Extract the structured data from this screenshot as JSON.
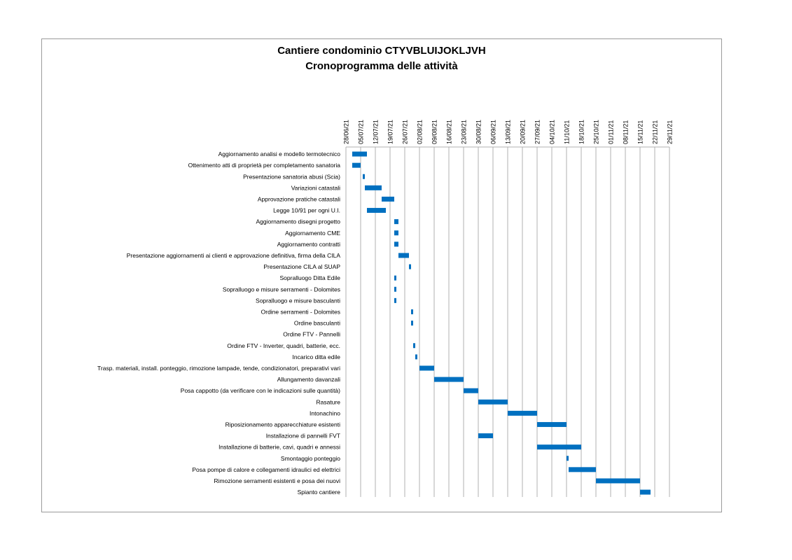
{
  "title_line1": "Cantiere condominio CTYVBLUIJOKLJVH",
  "title_line2": "Cronoprogramma delle attività",
  "colors": {
    "bar": "#0070c0",
    "grid": "#b0b0b0",
    "frame": "#9a9a9a"
  },
  "chart_data": {
    "type": "gantt",
    "title": "Cantiere condominio CTYVBLUIJOKLJVH — Cronoprogramma delle attività",
    "x_axis": {
      "type": "date",
      "position": "top",
      "range": [
        "2021-06-28",
        "2021-12-01"
      ],
      "tick_labels": [
        "28/06/21",
        "05/07/21",
        "12/07/21",
        "19/07/21",
        "26/07/21",
        "02/08/21",
        "09/08/21",
        "16/08/21",
        "23/08/21",
        "30/08/21",
        "06/09/21",
        "13/09/21",
        "20/09/21",
        "27/09/21",
        "04/10/21",
        "11/10/21",
        "18/10/21",
        "25/10/21",
        "01/11/21",
        "08/11/21",
        "15/11/21",
        "22/11/21",
        "29/11/21"
      ],
      "tick_dates": [
        "2021-06-28",
        "2021-07-05",
        "2021-07-12",
        "2021-07-19",
        "2021-07-26",
        "2021-08-02",
        "2021-08-09",
        "2021-08-16",
        "2021-08-23",
        "2021-08-30",
        "2021-09-06",
        "2021-09-13",
        "2021-09-20",
        "2021-09-27",
        "2021-10-04",
        "2021-10-11",
        "2021-10-18",
        "2021-10-25",
        "2021-11-01",
        "2021-11-08",
        "2021-11-15",
        "2021-11-22",
        "2021-11-29"
      ]
    },
    "grid": true,
    "tasks": [
      {
        "name": "Aggiornamento analisi e modello termotecnico",
        "start": "2021-07-01",
        "end": "2021-07-08"
      },
      {
        "name": "Ottenimento atti di proprietà per completamento sanatoria",
        "start": "2021-07-01",
        "end": "2021-07-05"
      },
      {
        "name": "Presentazione sanatoria abusi (Scia)",
        "start": "2021-07-06",
        "end": "2021-07-07"
      },
      {
        "name": "Variazioni catastali",
        "start": "2021-07-07",
        "end": "2021-07-15"
      },
      {
        "name": "Approvazione pratiche catastali",
        "start": "2021-07-15",
        "end": "2021-07-21"
      },
      {
        "name": "Legge 10/91 per ogni U.I.",
        "start": "2021-07-08",
        "end": "2021-07-17"
      },
      {
        "name": "Aggiornamento disegni progetto",
        "start": "2021-07-21",
        "end": "2021-07-23"
      },
      {
        "name": "Aggiornamento CME",
        "start": "2021-07-21",
        "end": "2021-07-23"
      },
      {
        "name": "Aggiornamento contratti",
        "start": "2021-07-21",
        "end": "2021-07-23"
      },
      {
        "name": "Presentazione aggiornamenti ai clienti e approvazione definitiva, firma della CILA",
        "start": "2021-07-23",
        "end": "2021-07-28"
      },
      {
        "name": "Presentazione CILA al SUAP",
        "start": "2021-07-28",
        "end": "2021-07-29"
      },
      {
        "name": "Sopralluogo Ditta Edile",
        "start": "2021-07-21",
        "end": "2021-07-22"
      },
      {
        "name": "Sopralluogo e misure serramenti - Dolomites",
        "start": "2021-07-21",
        "end": "2021-07-22"
      },
      {
        "name": "Sopralluogo e misure basculanti",
        "start": "2021-07-21",
        "end": "2021-07-22"
      },
      {
        "name": "Ordine serramenti - Dolomites",
        "start": "2021-07-29",
        "end": "2021-07-30"
      },
      {
        "name": "Ordine basculanti",
        "start": "2021-07-29",
        "end": "2021-07-30"
      },
      {
        "name": "Ordine FTV - Pannelli",
        "start": null,
        "end": null
      },
      {
        "name": "Ordine FTV - Inverter, quadri, batterie, ecc.",
        "start": "2021-07-30",
        "end": "2021-07-31"
      },
      {
        "name": "Incarico ditta edile",
        "start": "2021-07-31",
        "end": "2021-08-01"
      },
      {
        "name": "Trasp. materiali, install. ponteggio, rimozione lampade, tende, condizionatori, preparativi vari",
        "start": "2021-08-02",
        "end": "2021-08-09"
      },
      {
        "name": "Allungamento davanzali",
        "start": "2021-08-09",
        "end": "2021-08-23"
      },
      {
        "name": "Posa cappotto (da verificare con le indicazioni sulle quantità)",
        "start": "2021-08-23",
        "end": "2021-08-30"
      },
      {
        "name": "Rasature",
        "start": "2021-08-30",
        "end": "2021-09-13"
      },
      {
        "name": "Intonachino",
        "start": "2021-09-13",
        "end": "2021-09-27"
      },
      {
        "name": "Riposizionamento apparecchiature esistenti",
        "start": "2021-09-27",
        "end": "2021-10-11"
      },
      {
        "name": "Installazione di pannelli FVT",
        "start": "2021-08-30",
        "end": "2021-09-06"
      },
      {
        "name": "Installazione di batterie, cavi, quadri e annessi",
        "start": "2021-09-27",
        "end": "2021-10-18"
      },
      {
        "name": "Smontaggio ponteggio",
        "start": "2021-10-11",
        "end": "2021-10-12"
      },
      {
        "name": "Posa pompe di calore e collegamenti idraulici ed elettrici",
        "start": "2021-10-12",
        "end": "2021-10-25"
      },
      {
        "name": "Rimozione serramenti esistenti e posa dei nuovi",
        "start": "2021-10-25",
        "end": "2021-11-15"
      },
      {
        "name": "Spianto cantiere",
        "start": "2021-11-15",
        "end": "2021-11-20"
      }
    ]
  }
}
